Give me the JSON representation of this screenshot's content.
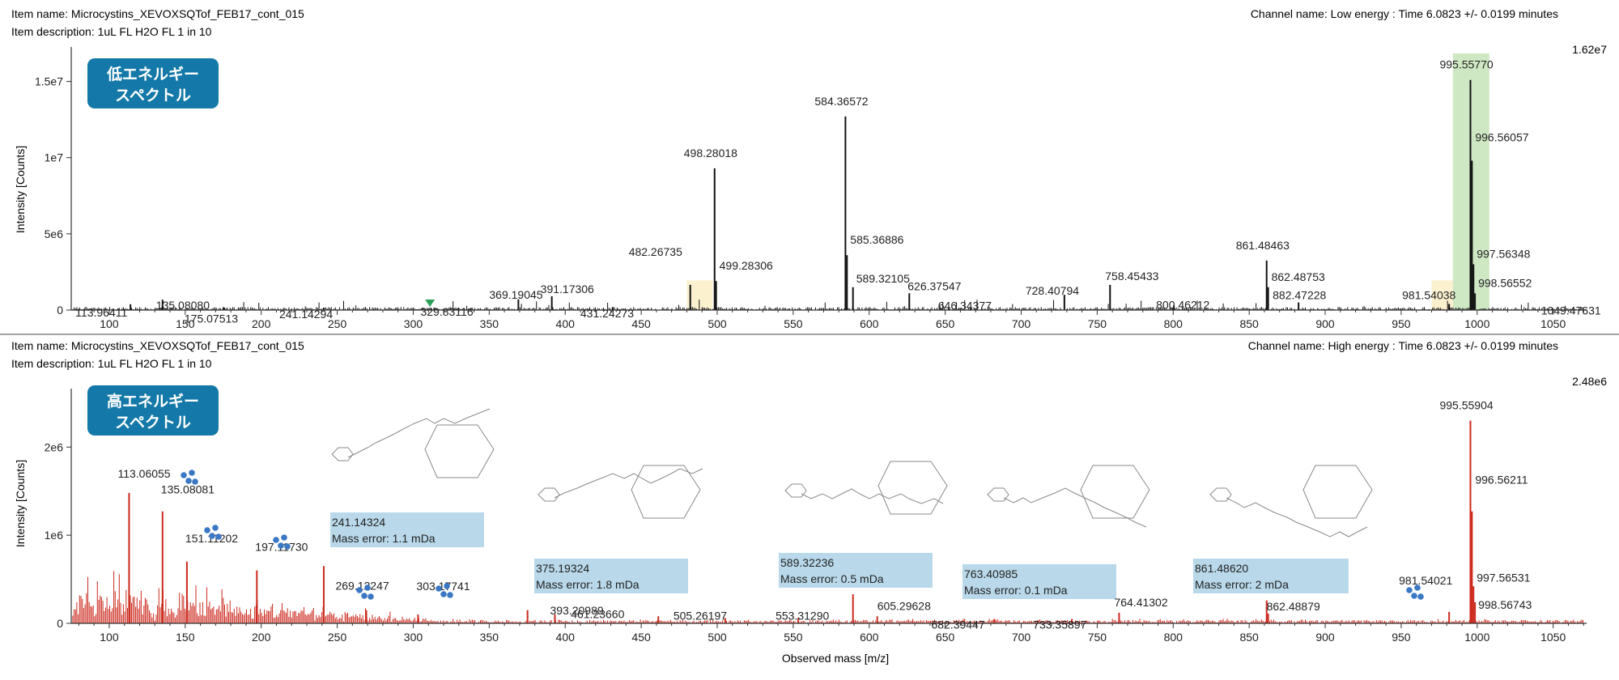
{
  "colors": {
    "top_trace": "#111111",
    "bottom_trace": "#cc2a1e",
    "badge_bg": "#1479a8",
    "badge_text": "#ffffff",
    "main_highlight": "#cfe8c4",
    "minor_highlight": "#fbf1cf",
    "error_box": "#b9d9ea",
    "cluster_icon": "#3a78c4",
    "marker": "#2aa05a",
    "axis": "#333333"
  },
  "chart_data": [
    {
      "type": "line",
      "subtype": "mass-spectrum",
      "header": {
        "item_name": "Item name: Microcystins_XEVOXSQTof_FEB17_cont_015",
        "item_description": "Item description: 1uL FL H2O FL 1 in 10",
        "channel": "Channel name: Low energy : Time 6.0823 +/- 0.0199 minutes"
      },
      "badge": [
        "低エネルギー",
        "スペクトル"
      ],
      "max_label": "1.62e7",
      "ylabel": "Intensity [Counts]",
      "xlabel": "",
      "xlim": [
        75,
        1072
      ],
      "ylim": [
        0,
        16200000
      ],
      "xticks": [
        100,
        150,
        200,
        250,
        300,
        350,
        400,
        450,
        500,
        550,
        600,
        650,
        700,
        750,
        800,
        850,
        900,
        950,
        1000,
        1050
      ],
      "yticks": [
        {
          "v": 0,
          "label": "0"
        },
        {
          "v": 5000000,
          "label": "5e6"
        },
        {
          "v": 10000000,
          "label": "1e7"
        },
        {
          "v": 15000000,
          "label": "1.5e7"
        }
      ],
      "highlights": [
        {
          "x0": 984,
          "x1": 1008,
          "style": "main"
        },
        {
          "x0": 480,
          "x1": 497,
          "style": "minor"
        },
        {
          "x0": 970,
          "x1": 984,
          "style": "minor"
        }
      ],
      "marker_x": 311,
      "peaks": [
        {
          "mz": 113.96411,
          "y": 380000,
          "label": "113.96411"
        },
        {
          "mz": 135.0808,
          "y": 680000,
          "label": "135.08080"
        },
        {
          "mz": 175.07513,
          "y": 180000,
          "label": "175.07513"
        },
        {
          "mz": 241.14294,
          "y": 160000,
          "label": "241.14294"
        },
        {
          "mz": 329.83116,
          "y": 150000,
          "label": "329.83116"
        },
        {
          "mz": 369.19045,
          "y": 700000,
          "label": "369.19045"
        },
        {
          "mz": 391.17306,
          "y": 900000,
          "label": "391.17306"
        },
        {
          "mz": 431.24273,
          "y": 200000,
          "label": "431.24273"
        },
        {
          "mz": 482.26735,
          "y": 1650000,
          "label": "482.26735"
        },
        {
          "mz": 498.28018,
          "y": 9300000,
          "label": "498.28018"
        },
        {
          "mz": 499.28306,
          "y": 1900000,
          "label": "499.28306"
        },
        {
          "mz": 584.36572,
          "y": 12700000,
          "label": "584.36572"
        },
        {
          "mz": 585.36886,
          "y": 3600000,
          "label": "585.36886"
        },
        {
          "mz": 589.32105,
          "y": 1500000,
          "label": "589.32105"
        },
        {
          "mz": 626.37547,
          "y": 1100000,
          "label": "626.37547"
        },
        {
          "mz": 646.34377,
          "y": 250000,
          "label": "646.34377"
        },
        {
          "mz": 728.40794,
          "y": 1000000,
          "label": "728.40794"
        },
        {
          "mz": 758.45433,
          "y": 1650000,
          "label": "758.45433"
        },
        {
          "mz": 800.46212,
          "y": 300000,
          "label": "800.46212"
        },
        {
          "mz": 861.48463,
          "y": 3250000,
          "label": "861.48463"
        },
        {
          "mz": 862.48753,
          "y": 1500000,
          "label": "862.48753"
        },
        {
          "mz": 882.47228,
          "y": 500000,
          "label": "882.47228"
        },
        {
          "mz": 981.54038,
          "y": 400000,
          "label": "981.54038"
        },
        {
          "mz": 995.5577,
          "y": 15100000,
          "label": "995.55770"
        },
        {
          "mz": 996.56057,
          "y": 9800000,
          "label": "996.56057"
        },
        {
          "mz": 997.56348,
          "y": 3000000,
          "label": "997.56348"
        },
        {
          "mz": 998.56552,
          "y": 1100000,
          "label": "998.56552"
        },
        {
          "mz": 1049.47631,
          "y": 120000,
          "label": "1049.47631"
        }
      ]
    },
    {
      "type": "line",
      "subtype": "mass-spectrum",
      "header": {
        "item_name": "Item name: Microcystins_XEVOXSQTof_FEB17_cont_015",
        "item_description": "Item description: 1uL FL H2O FL 1 in 10",
        "channel": "Channel name: High energy : Time 6.0823 +/- 0.0199 minutes"
      },
      "badge": [
        "高エネルギー",
        "スペクトル"
      ],
      "max_label": "2.48e6",
      "ylabel": "Intensity [Counts]",
      "xlabel": "Observed mass [m/z]",
      "xlim": [
        75,
        1072
      ],
      "ylim": [
        0,
        2480000
      ],
      "xticks": [
        100,
        150,
        200,
        250,
        300,
        350,
        400,
        450,
        500,
        550,
        600,
        650,
        700,
        750,
        800,
        850,
        900,
        950,
        1000,
        1050
      ],
      "yticks": [
        {
          "v": 0,
          "label": "0"
        },
        {
          "v": 1000000,
          "label": "1e6"
        },
        {
          "v": 2000000,
          "label": "2e6"
        }
      ],
      "error_boxes": [
        {
          "mz_label": "241.14324",
          "error": "Mass error: 1.1 mDa"
        },
        {
          "mz_label": "375.19324",
          "error": "Mass error: 1.8 mDa"
        },
        {
          "mz_label": "589.32236",
          "error": "Mass error: 0.5 mDa"
        },
        {
          "mz_label": "763.40985",
          "error": "Mass error: 0.1 mDa"
        },
        {
          "mz_label": "861.48620",
          "error": "Mass error: 2 mDa"
        }
      ],
      "peaks": [
        {
          "mz": 113.06055,
          "y": 1480000,
          "label": "113.06055"
        },
        {
          "mz": 135.08081,
          "y": 1270000,
          "label": "135.08081"
        },
        {
          "mz": 151.11202,
          "y": 700000,
          "label": "151.11202"
        },
        {
          "mz": 197.1173,
          "y": 600000,
          "label": "197.11730"
        },
        {
          "mz": 241.14324,
          "y": 650000,
          "label": ""
        },
        {
          "mz": 269.12247,
          "y": 150000,
          "label": "269.12247"
        },
        {
          "mz": 303.17741,
          "y": 100000,
          "label": "303.17741"
        },
        {
          "mz": 375.19324,
          "y": 150000,
          "label": ""
        },
        {
          "mz": 393.20989,
          "y": 100000,
          "label": "393.20989"
        },
        {
          "mz": 461.2366,
          "y": 80000,
          "label": "461.23660"
        },
        {
          "mz": 505.26197,
          "y": 60000,
          "label": "505.26197"
        },
        {
          "mz": 553.3129,
          "y": 60000,
          "label": "553.31290"
        },
        {
          "mz": 589.32236,
          "y": 330000,
          "label": ""
        },
        {
          "mz": 605.29628,
          "y": 80000,
          "label": "605.29628"
        },
        {
          "mz": 682.39447,
          "y": 50000,
          "label": "682.39447"
        },
        {
          "mz": 733.35897,
          "y": 50000,
          "label": "733.35897"
        },
        {
          "mz": 764.41302,
          "y": 120000,
          "label": "764.41302"
        },
        {
          "mz": 861.4862,
          "y": 260000,
          "label": ""
        },
        {
          "mz": 862.48879,
          "y": 110000,
          "label": "862.48879"
        },
        {
          "mz": 981.54021,
          "y": 130000,
          "label": "981.54021"
        },
        {
          "mz": 995.55904,
          "y": 2300000,
          "label": "995.55904"
        },
        {
          "mz": 996.56211,
          "y": 1270000,
          "label": "996.56211"
        },
        {
          "mz": 997.56531,
          "y": 420000,
          "label": "997.56531"
        },
        {
          "mz": 998.56743,
          "y": 240000,
          "label": "998.56743"
        }
      ]
    }
  ]
}
